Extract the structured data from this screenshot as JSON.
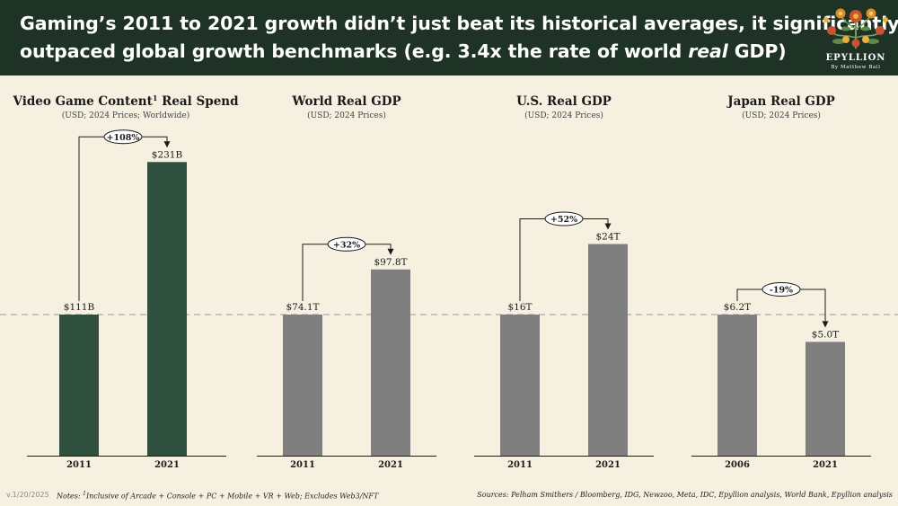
{
  "title": {
    "line1": "Gaming’s 2011 to 2021 growth didn’t just beat its historical averages, it significantly",
    "line2_pre": "outpaced global growth benchmarks (e.g. 3.4x the rate of world ",
    "line2_em": "real",
    "line2_post": " GDP)"
  },
  "logo": {
    "name": "EPYLLION",
    "byline": "By Matthew Ball"
  },
  "colors": {
    "header": "#1e3226",
    "gaming_bar": "#30503f",
    "benchmark_bar": "#7f7f7f",
    "baseline": "#b5b5b5"
  },
  "chart_data": [
    {
      "type": "bar",
      "title": "Video Game Content",
      "title_sup": "1",
      "title_post": " Real Spend",
      "subtitle": "(USD; 2024 Prices; Worldwide)",
      "categories": [
        "2011",
        "2021"
      ],
      "values": [
        111,
        231
      ],
      "value_labels": [
        "$111B",
        "$231B"
      ],
      "unit": "B",
      "change_label": "+108%",
      "color": "gaming"
    },
    {
      "type": "bar",
      "title": "World Real GDP",
      "subtitle": "(USD; 2024 Prices)",
      "categories": [
        "2011",
        "2021"
      ],
      "values": [
        74.1,
        97.8
      ],
      "value_labels": [
        "$74.1T",
        "$97.8T"
      ],
      "unit": "T",
      "change_label": "+32%",
      "color": "benchmark"
    },
    {
      "type": "bar",
      "title": "U.S. Real GDP",
      "subtitle": "(USD; 2024 Prices)",
      "categories": [
        "2011",
        "2021"
      ],
      "values": [
        16,
        24
      ],
      "value_labels": [
        "$16T",
        "$24T"
      ],
      "unit": "T",
      "change_label": "+52%",
      "color": "benchmark"
    },
    {
      "type": "bar",
      "title": "Japan Real GDP",
      "subtitle": "(USD; 2024 Prices)",
      "categories": [
        "2006",
        "2021"
      ],
      "values": [
        6.2,
        5.0
      ],
      "value_labels": [
        "$6.2T",
        "$5.0T"
      ],
      "unit": "T",
      "change_label": "-19%",
      "color": "benchmark"
    }
  ],
  "footer": {
    "version": "v.1/20/2025",
    "notes_pre": "Notes: ",
    "notes_sup": "1",
    "notes_post": "Inclusive of Arcade + Console + PC + Mobile + VR + Web; Excludes Web3/NFT",
    "sources": "Sources: Pelham Smithers / Bloomberg, IDG, Newzoo, Meta, IDC, Epyllion analysis, World Bank, Epyllion analysis"
  }
}
